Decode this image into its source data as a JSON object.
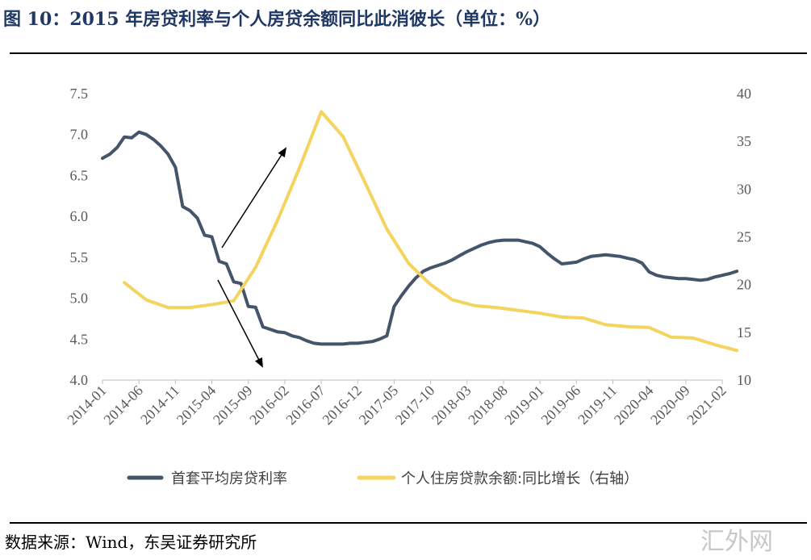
{
  "title": "图 10：2015 年房贷利率与个人房贷余额同比此消彼长（单位：%）",
  "source": "数据来源：Wind，东吴证券研究所",
  "watermark": "汇外网",
  "chart_data": {
    "type": "line",
    "x_tick_labels": [
      "2014-01",
      "2014-06",
      "2014-11",
      "2015-04",
      "2015-09",
      "2016-02",
      "2016-07",
      "2016-12",
      "2017-05",
      "2017-10",
      "2018-03",
      "2018-08",
      "2019-01",
      "2019-06",
      "2019-11",
      "2020-04",
      "2020-09",
      "2021-02"
    ],
    "left_axis": {
      "min": 4.0,
      "max": 7.5,
      "ticks": [
        "4.0",
        "4.5",
        "5.0",
        "5.5",
        "6.0",
        "6.5",
        "7.0",
        "7.5"
      ]
    },
    "right_axis": {
      "min": 10,
      "max": 40,
      "ticks": [
        "10",
        "15",
        "20",
        "25",
        "30",
        "35",
        "40"
      ]
    },
    "series": [
      {
        "name": "首套平均房贷利率",
        "axis": "left",
        "color": "#44546a",
        "x": [
          0,
          1,
          2,
          3,
          4,
          5,
          6,
          7,
          8,
          9,
          10,
          11,
          12,
          13,
          14,
          15,
          16,
          17,
          18,
          19,
          20,
          21,
          22,
          23,
          24,
          25,
          26,
          27,
          28,
          29,
          30,
          31,
          32,
          33,
          34,
          35,
          36,
          37,
          38,
          39,
          40,
          41,
          42,
          43,
          44,
          45,
          46,
          47,
          48,
          49,
          50,
          51,
          52,
          53,
          54,
          55,
          56,
          57,
          58,
          59,
          60,
          61,
          62,
          63,
          64,
          65,
          66,
          67,
          68,
          69,
          70,
          71,
          72,
          73,
          74,
          75,
          76,
          77,
          78,
          79,
          80,
          81,
          82,
          83,
          84,
          85,
          86,
          87
        ],
        "values": [
          6.71,
          6.76,
          6.84,
          6.97,
          6.96,
          7.03,
          7.0,
          6.94,
          6.86,
          6.76,
          6.6,
          6.12,
          6.07,
          5.98,
          5.77,
          5.75,
          5.45,
          5.42,
          5.2,
          5.18,
          4.9,
          4.89,
          4.65,
          4.62,
          4.59,
          4.58,
          4.54,
          4.52,
          4.48,
          4.45,
          4.44,
          4.44,
          4.44,
          4.44,
          4.45,
          4.45,
          4.46,
          4.47,
          4.5,
          4.54,
          4.9,
          5.03,
          5.15,
          5.25,
          5.33,
          5.37,
          5.4,
          5.43,
          5.47,
          5.52,
          5.57,
          5.61,
          5.65,
          5.68,
          5.7,
          5.71,
          5.71,
          5.71,
          5.69,
          5.67,
          5.63,
          5.55,
          5.48,
          5.42,
          5.43,
          5.44,
          5.48,
          5.51,
          5.52,
          5.53,
          5.52,
          5.51,
          5.49,
          5.47,
          5.43,
          5.32,
          5.28,
          5.26,
          5.25,
          5.24,
          5.24,
          5.23,
          5.22,
          5.23,
          5.26,
          5.28,
          5.3,
          5.33
        ]
      },
      {
        "name": "个人住房贷款余额:同比增长（右轴）",
        "axis": "right",
        "color": "#f4d35e",
        "x": [
          3,
          6,
          9,
          12,
          15,
          18,
          21,
          24,
          27,
          30,
          33,
          36,
          39,
          42,
          45,
          48,
          51,
          54,
          57,
          60,
          63,
          66,
          69,
          72,
          75,
          78,
          81,
          84,
          87
        ],
        "values": [
          20.2,
          18.4,
          17.6,
          17.6,
          17.9,
          18.3,
          21.8,
          26.7,
          32.2,
          38.1,
          35.5,
          30.7,
          25.8,
          22.2,
          20.0,
          18.4,
          17.8,
          17.6,
          17.3,
          17.0,
          16.6,
          16.5,
          15.8,
          15.6,
          15.5,
          14.5,
          14.4,
          13.7,
          13.1
        ]
      }
    ],
    "legend_position": "bottom"
  }
}
